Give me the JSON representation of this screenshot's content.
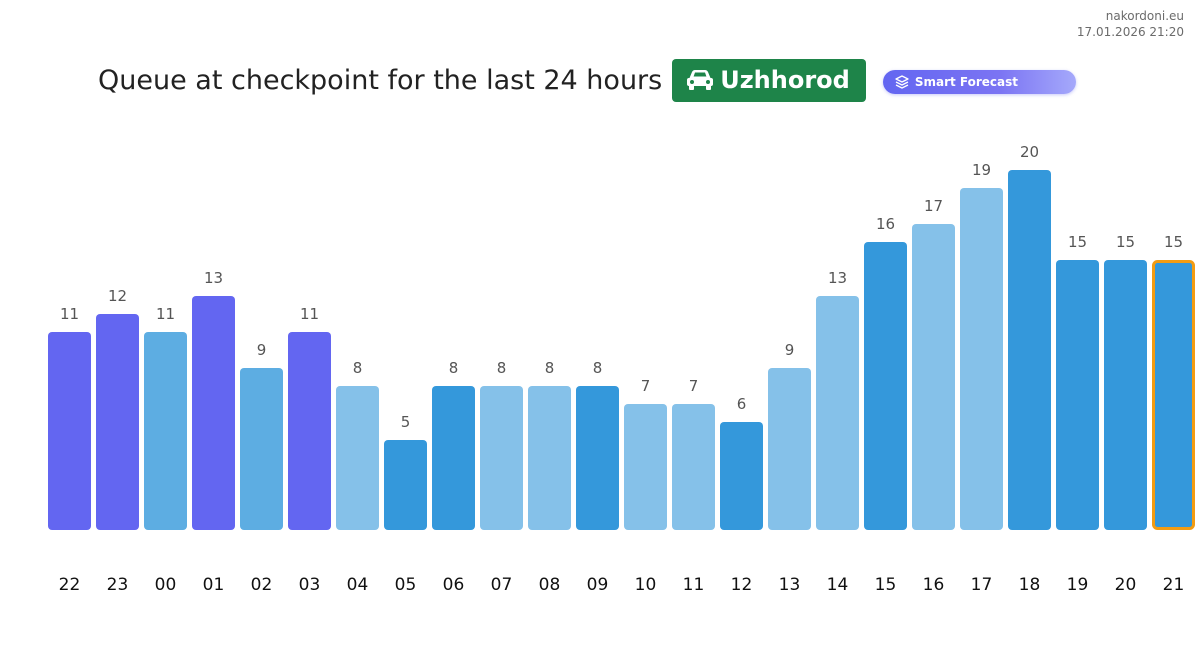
{
  "site": {
    "domain": "nakordoni.eu",
    "timestamp": "17.01.2026 21:20"
  },
  "header": {
    "title": "Queue at checkpoint for the last 24 hours",
    "location": "Uzhhorod",
    "location_icon": "car-icon",
    "forecast_label": "Smart Forecast",
    "forecast_icon": "layers-icon"
  },
  "colors": {
    "badge": "#1e8449",
    "forecast": "#6366f1",
    "highlight_border": "#f39c12"
  },
  "chart_data": {
    "type": "bar",
    "categories": [
      "22",
      "23",
      "00",
      "01",
      "02",
      "03",
      "04",
      "05",
      "06",
      "07",
      "08",
      "09",
      "10",
      "11",
      "12",
      "13",
      "14",
      "15",
      "16",
      "17",
      "18",
      "19",
      "20",
      "21"
    ],
    "values": [
      11,
      12,
      11,
      13,
      9,
      11,
      8,
      5,
      8,
      8,
      8,
      8,
      7,
      7,
      6,
      9,
      13,
      16,
      17,
      19,
      20,
      15,
      15,
      15
    ],
    "bar_colors": [
      "#6366f1",
      "#6366f1",
      "#5dade2",
      "#6366f1",
      "#5dade2",
      "#6366f1",
      "#85c1e9",
      "#3498db",
      "#3498db",
      "#85c1e9",
      "#85c1e9",
      "#3498db",
      "#85c1e9",
      "#85c1e9",
      "#3498db",
      "#85c1e9",
      "#85c1e9",
      "#3498db",
      "#85c1e9",
      "#85c1e9",
      "#3498db",
      "#3498db",
      "#3498db",
      "#3498db"
    ],
    "highlighted_category": "21",
    "ylim": [
      0,
      20
    ],
    "data_labels": true,
    "grid": false,
    "legend": "none"
  }
}
